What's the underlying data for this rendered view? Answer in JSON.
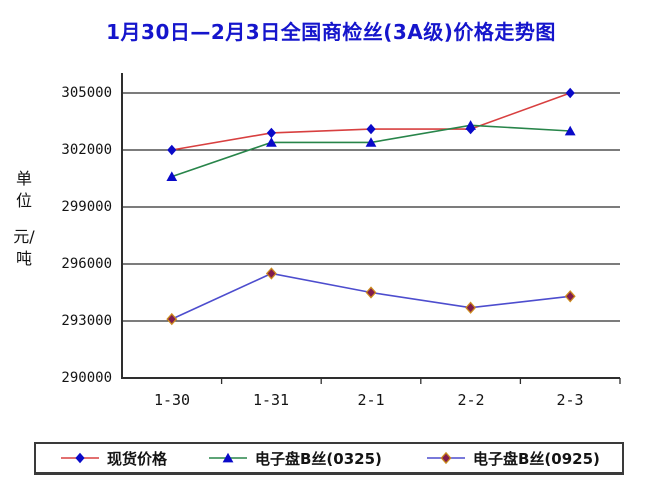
{
  "title": "1月30日—2月3日全国商检丝(3A级)价格走势图",
  "y_axis_unit": {
    "line1": "单位",
    "line2": "元/吨"
  },
  "colors": {
    "title_blue": "#1515cc",
    "axis_gray": "#2e2e2e",
    "spot_line_red": "#d84040",
    "b0325_line_green": "#28854a",
    "b0925_line_blue": "#4d4dce",
    "blue_marker": "#0a0ac8",
    "maroon_marker": "#801c4e",
    "maroon_marker_border": "#cc8a1e"
  },
  "chart_data": {
    "type": "line",
    "title": "1月30日—2月3日全国商检丝(3A级)价格走势图",
    "ylabel": "单位 元/吨",
    "xlabel": "",
    "ylim": [
      290000,
      305000
    ],
    "ytick_step": 3000,
    "yticks": [
      "305000",
      "302000",
      "299000",
      "296000",
      "293000",
      "290000"
    ],
    "categories": [
      "1-30",
      "1-31",
      "2-1",
      "2-2",
      "2-3"
    ],
    "grid": "horizontal",
    "legend_position": "bottom",
    "series": [
      {
        "name": "现货价格",
        "values": [
          302000,
          302900,
          303100,
          303100,
          305000
        ],
        "line_color": "#d84040",
        "marker": "diamond",
        "marker_color": "#0a0ac8",
        "marker_border": ""
      },
      {
        "name": "电子盘B丝(0325)",
        "values": [
          300600,
          302400,
          302400,
          303300,
          303000
        ],
        "line_color": "#28854a",
        "marker": "triangle",
        "marker_color": "#0a0ac8",
        "marker_border": ""
      },
      {
        "name": "电子盘B丝(0925)",
        "values": [
          293100,
          295500,
          294500,
          293700,
          294300
        ],
        "line_color": "#4d4dce",
        "marker": "diamond",
        "marker_color": "#801c4e",
        "marker_border": "#cc8a1e"
      }
    ]
  }
}
